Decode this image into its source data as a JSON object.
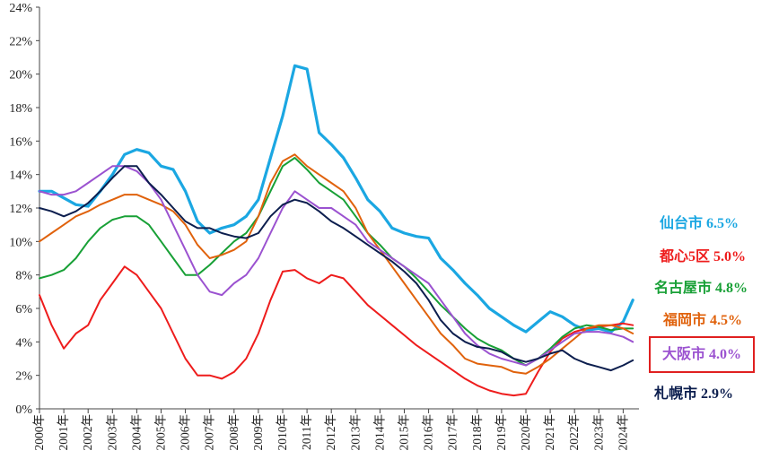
{
  "chart_data": {
    "type": "line",
    "ylim": [
      0,
      24
    ],
    "y_ticks": [
      "0%",
      "2%",
      "4%",
      "6%",
      "8%",
      "10%",
      "12%",
      "14%",
      "16%",
      "18%",
      "20%",
      "22%",
      "24%"
    ],
    "x_ticks": [
      "2000年",
      "2001年",
      "2002年",
      "2003年",
      "2004年",
      "2005年",
      "2006年",
      "2007年",
      "2008年",
      "2009年",
      "2010年",
      "2011年",
      "2012年",
      "2013年",
      "2014年",
      "2015年",
      "2016年",
      "2017年",
      "2018年",
      "2019年",
      "2020年",
      "2021年",
      "2022年",
      "2023年",
      "2024年"
    ],
    "grid": false,
    "x": [
      2000.0,
      2000.5,
      2001.0,
      2001.5,
      2002.0,
      2002.5,
      2003.0,
      2003.5,
      2004.0,
      2004.5,
      2005.0,
      2005.5,
      2006.0,
      2006.5,
      2007.0,
      2007.5,
      2008.0,
      2008.5,
      2009.0,
      2009.5,
      2010.0,
      2010.5,
      2011.0,
      2011.5,
      2012.0,
      2012.5,
      2013.0,
      2013.5,
      2014.0,
      2014.5,
      2015.0,
      2015.5,
      2016.0,
      2016.5,
      2017.0,
      2017.5,
      2018.0,
      2018.5,
      2019.0,
      2019.5,
      2020.0,
      2020.5,
      2021.0,
      2021.5,
      2022.0,
      2022.5,
      2023.0,
      2023.5,
      2024.0,
      2024.4
    ],
    "series": [
      {
        "name": "仙台市",
        "label": "仙台市 6.5%",
        "color": "#1ba7e2",
        "width": 3.2,
        "values": [
          13.0,
          13.0,
          12.6,
          12.2,
          12.1,
          13.0,
          14.0,
          15.2,
          15.5,
          15.3,
          14.5,
          14.3,
          13.0,
          11.2,
          10.5,
          10.8,
          11.0,
          11.5,
          12.5,
          15.0,
          17.5,
          20.5,
          20.3,
          16.5,
          15.8,
          15.0,
          13.8,
          12.5,
          11.8,
          10.8,
          10.5,
          10.3,
          10.2,
          9.0,
          8.3,
          7.5,
          6.8,
          6.0,
          5.5,
          5.0,
          4.6,
          5.2,
          5.8,
          5.5,
          5.0,
          4.7,
          4.8,
          4.6,
          5.2,
          6.5
        ]
      },
      {
        "name": "都心5区",
        "label": "都心5区 5.0%",
        "color": "#ee1c1c",
        "width": 2,
        "values": [
          6.8,
          5.0,
          3.6,
          4.5,
          5.0,
          6.5,
          7.5,
          8.5,
          8.0,
          7.0,
          6.0,
          4.5,
          3.0,
          2.0,
          2.0,
          1.8,
          2.2,
          3.0,
          4.5,
          6.5,
          8.2,
          8.3,
          7.8,
          7.5,
          8.0,
          7.8,
          7.0,
          6.2,
          5.6,
          5.0,
          4.4,
          3.8,
          3.3,
          2.8,
          2.3,
          1.8,
          1.4,
          1.1,
          0.9,
          0.8,
          0.9,
          2.2,
          3.4,
          4.2,
          4.6,
          4.8,
          4.9,
          5.0,
          5.1,
          5.0
        ]
      },
      {
        "name": "名古屋市",
        "label": "名古屋市 4.8%",
        "color": "#18a036",
        "width": 2,
        "values": [
          7.8,
          8.0,
          8.3,
          9.0,
          10.0,
          10.8,
          11.3,
          11.5,
          11.5,
          11.0,
          10.0,
          9.0,
          8.0,
          8.0,
          8.6,
          9.3,
          10.0,
          10.5,
          11.5,
          13.0,
          14.5,
          15.0,
          14.3,
          13.5,
          13.0,
          12.5,
          11.5,
          10.5,
          9.8,
          9.0,
          8.5,
          7.8,
          7.0,
          6.2,
          5.5,
          4.8,
          4.2,
          3.8,
          3.5,
          3.0,
          2.6,
          3.0,
          3.6,
          4.3,
          4.8,
          5.0,
          4.9,
          4.7,
          4.8,
          4.8
        ]
      },
      {
        "name": "福岡市",
        "label": "福岡市 4.5%",
        "color": "#e0620c",
        "width": 2,
        "values": [
          10.0,
          10.5,
          11.0,
          11.5,
          11.8,
          12.2,
          12.5,
          12.8,
          12.8,
          12.5,
          12.2,
          11.8,
          11.0,
          9.8,
          9.0,
          9.2,
          9.5,
          10.0,
          11.5,
          13.5,
          14.8,
          15.2,
          14.5,
          14.0,
          13.5,
          13.0,
          12.0,
          10.5,
          9.5,
          8.5,
          7.5,
          6.5,
          5.5,
          4.5,
          3.8,
          3.0,
          2.7,
          2.6,
          2.5,
          2.2,
          2.1,
          2.5,
          3.0,
          3.6,
          4.2,
          4.8,
          5.0,
          5.0,
          4.8,
          4.5
        ]
      },
      {
        "name": "大阪市",
        "label": "大阪市 4.0%",
        "color": "#9b52d0",
        "width": 2,
        "values": [
          13.0,
          12.8,
          12.8,
          13.0,
          13.5,
          14.0,
          14.5,
          14.5,
          14.2,
          13.5,
          12.5,
          11.0,
          9.5,
          8.0,
          7.0,
          6.8,
          7.5,
          8.0,
          9.0,
          10.5,
          12.0,
          13.0,
          12.5,
          12.0,
          12.0,
          11.5,
          11.0,
          10.0,
          9.5,
          9.0,
          8.5,
          8.0,
          7.5,
          6.5,
          5.5,
          4.5,
          3.8,
          3.3,
          3.0,
          2.8,
          2.6,
          3.0,
          3.5,
          4.0,
          4.5,
          4.6,
          4.6,
          4.5,
          4.3,
          4.0
        ]
      },
      {
        "name": "札幌市",
        "label": "札幌市 2.9%",
        "color": "#0c1e4e",
        "width": 2,
        "values": [
          12.0,
          11.8,
          11.5,
          11.8,
          12.3,
          13.0,
          13.8,
          14.5,
          14.5,
          13.5,
          12.8,
          12.0,
          11.2,
          10.8,
          10.8,
          10.5,
          10.3,
          10.2,
          10.5,
          11.5,
          12.2,
          12.5,
          12.3,
          11.8,
          11.2,
          10.8,
          10.3,
          9.8,
          9.3,
          8.8,
          8.2,
          7.5,
          6.5,
          5.3,
          4.5,
          4.0,
          3.7,
          3.6,
          3.4,
          3.0,
          2.8,
          3.0,
          3.3,
          3.5,
          3.0,
          2.7,
          2.5,
          2.3,
          2.6,
          2.9
        ]
      }
    ]
  }
}
